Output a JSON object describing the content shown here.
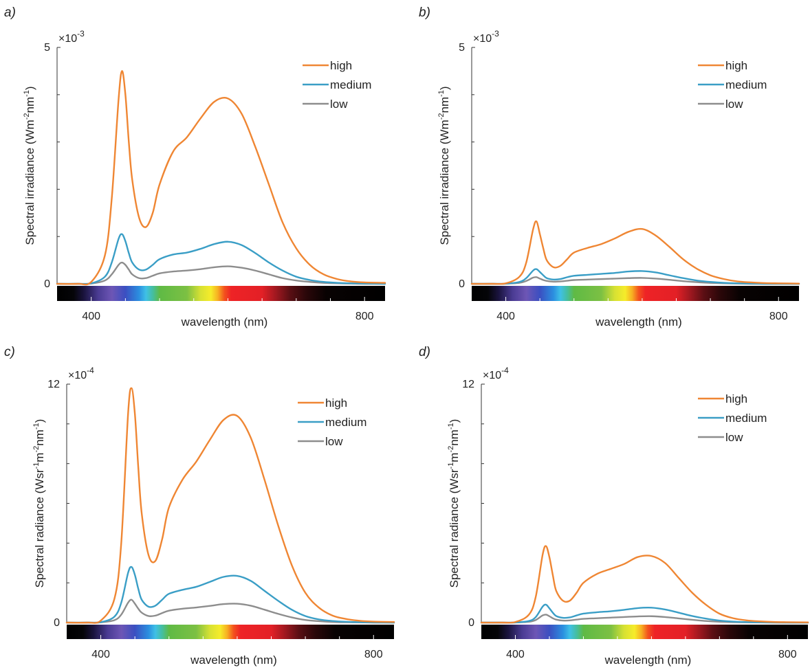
{
  "figure": {
    "panels": [
      "a)",
      "b)",
      "c)",
      "d)"
    ]
  },
  "colors": {
    "high": "#ef8633",
    "medium": "#3a9ec6",
    "low": "#8d8d8d",
    "axis": "#333333"
  },
  "chart_data": [
    {
      "type": "line",
      "panel": "a)",
      "xlabel": "wavelength (nm)",
      "ylabel": "Spectral irradiance (Wm-2nm-1)",
      "ylabel_parts": [
        "Spectral irradiance (Wm",
        "-2",
        "nm",
        "-1",
        ")"
      ],
      "exponent_base": "×10",
      "exponent_power": "-3",
      "xlim": [
        350,
        830
      ],
      "ylim": [
        0,
        5
      ],
      "xticks": [
        400,
        800
      ],
      "yticks": [
        0,
        5
      ],
      "legend": [
        "high",
        "medium",
        "low"
      ],
      "x": [
        350,
        380,
        400,
        420,
        430,
        440,
        445,
        450,
        455,
        460,
        470,
        480,
        490,
        500,
        520,
        540,
        560,
        580,
        600,
        620,
        640,
        660,
        680,
        700,
        720,
        740,
        760,
        780,
        800,
        830
      ],
      "series": [
        {
          "name": "high",
          "values": [
            0,
            0,
            0.04,
            0.6,
            1.8,
            3.9,
            4.5,
            4.0,
            3.0,
            2.2,
            1.4,
            1.2,
            1.5,
            2.1,
            2.8,
            3.1,
            3.5,
            3.85,
            3.92,
            3.6,
            2.9,
            2.1,
            1.3,
            0.75,
            0.4,
            0.2,
            0.1,
            0.05,
            0.03,
            0.02
          ]
        },
        {
          "name": "medium",
          "values": [
            0,
            0,
            0.01,
            0.15,
            0.45,
            0.95,
            1.05,
            0.9,
            0.65,
            0.45,
            0.3,
            0.3,
            0.4,
            0.52,
            0.62,
            0.66,
            0.74,
            0.84,
            0.89,
            0.82,
            0.65,
            0.45,
            0.28,
            0.15,
            0.08,
            0.04,
            0.02,
            0.01,
            0.005,
            0
          ]
        },
        {
          "name": "low",
          "values": [
            0,
            0,
            0.005,
            0.07,
            0.2,
            0.4,
            0.45,
            0.4,
            0.3,
            0.2,
            0.12,
            0.12,
            0.17,
            0.22,
            0.26,
            0.28,
            0.31,
            0.35,
            0.37,
            0.34,
            0.28,
            0.2,
            0.12,
            0.07,
            0.04,
            0.02,
            0.01,
            0.005,
            0,
            0
          ]
        }
      ]
    },
    {
      "type": "line",
      "panel": "b)",
      "xlabel": "wavelength (nm)",
      "ylabel": "Spectral irradiance (Wm-2nm-1)",
      "ylabel_parts": [
        "Spectral irradiance (Wm",
        "-2",
        "nm",
        "-1",
        ")"
      ],
      "exponent_base": "×10",
      "exponent_power": "-3",
      "xlim": [
        350,
        830
      ],
      "ylim": [
        0,
        5
      ],
      "xticks": [
        400,
        800
      ],
      "yticks": [
        0,
        5
      ],
      "legend": [
        "high",
        "medium",
        "low"
      ],
      "x": [
        350,
        380,
        400,
        420,
        430,
        440,
        445,
        450,
        455,
        460,
        470,
        480,
        490,
        500,
        520,
        540,
        560,
        580,
        600,
        620,
        640,
        660,
        680,
        700,
        720,
        740,
        760,
        780,
        800,
        830
      ],
      "series": [
        {
          "name": "high",
          "values": [
            0,
            0,
            0.01,
            0.15,
            0.45,
            1.15,
            1.32,
            1.05,
            0.75,
            0.5,
            0.35,
            0.38,
            0.52,
            0.66,
            0.76,
            0.84,
            0.96,
            1.1,
            1.16,
            1.02,
            0.78,
            0.52,
            0.32,
            0.18,
            0.1,
            0.05,
            0.03,
            0.015,
            0.01,
            0.005
          ]
        },
        {
          "name": "medium",
          "values": [
            0,
            0,
            0.003,
            0.04,
            0.12,
            0.28,
            0.31,
            0.25,
            0.18,
            0.12,
            0.09,
            0.1,
            0.14,
            0.17,
            0.19,
            0.21,
            0.23,
            0.26,
            0.27,
            0.24,
            0.18,
            0.12,
            0.07,
            0.04,
            0.02,
            0.01,
            0.005,
            0,
            0,
            0
          ]
        },
        {
          "name": "low",
          "values": [
            0,
            0,
            0.001,
            0.02,
            0.06,
            0.13,
            0.14,
            0.11,
            0.08,
            0.06,
            0.045,
            0.05,
            0.065,
            0.08,
            0.09,
            0.1,
            0.11,
            0.12,
            0.125,
            0.11,
            0.085,
            0.055,
            0.035,
            0.02,
            0.01,
            0.005,
            0,
            0,
            0,
            0
          ]
        }
      ]
    },
    {
      "type": "line",
      "panel": "c)",
      "xlabel": "wavelength (nm)",
      "ylabel": "Spectral radiance (Wsr-1m-2nm-1)",
      "ylabel_parts": [
        "Spectral radiance (Wsr",
        "-1",
        "m",
        "-2",
        "nm",
        "-1",
        ")"
      ],
      "exponent_base": "×10",
      "exponent_power": "-4",
      "xlim": [
        350,
        830
      ],
      "ylim": [
        0,
        12
      ],
      "xticks": [
        400,
        800
      ],
      "yticks": [
        0,
        12
      ],
      "legend": [
        "high",
        "medium",
        "low"
      ],
      "x": [
        350,
        380,
        400,
        420,
        430,
        440,
        445,
        450,
        455,
        460,
        470,
        480,
        490,
        500,
        520,
        540,
        560,
        580,
        600,
        620,
        640,
        660,
        680,
        700,
        720,
        740,
        760,
        780,
        800,
        830
      ],
      "series": [
        {
          "name": "high",
          "values": [
            0,
            0,
            0.1,
            1.2,
            4.0,
            10.5,
            11.8,
            10.5,
            7.8,
            5.5,
            3.4,
            3.1,
            4.2,
            5.8,
            7.2,
            8.1,
            9.2,
            10.2,
            10.4,
            9.3,
            7.2,
            4.9,
            2.9,
            1.5,
            0.75,
            0.35,
            0.18,
            0.09,
            0.05,
            0.03
          ]
        },
        {
          "name": "medium",
          "values": [
            0,
            0,
            0.02,
            0.3,
            1.0,
            2.5,
            2.8,
            2.4,
            1.7,
            1.15,
            0.8,
            0.85,
            1.15,
            1.45,
            1.65,
            1.8,
            2.05,
            2.3,
            2.35,
            2.1,
            1.6,
            1.1,
            0.65,
            0.33,
            0.16,
            0.08,
            0.04,
            0.02,
            0.01,
            0
          ]
        },
        {
          "name": "low",
          "values": [
            0,
            0,
            0.01,
            0.12,
            0.4,
            1.0,
            1.15,
            0.95,
            0.7,
            0.5,
            0.33,
            0.35,
            0.48,
            0.6,
            0.7,
            0.76,
            0.84,
            0.93,
            0.95,
            0.85,
            0.65,
            0.44,
            0.26,
            0.13,
            0.07,
            0.03,
            0.015,
            0.01,
            0,
            0
          ]
        }
      ]
    },
    {
      "type": "line",
      "panel": "d)",
      "xlabel": "wavelength (nm)",
      "ylabel": "Spectral radiance (Wsr-1m-2nm-1)",
      "ylabel_parts": [
        "Spectral radiance (Wsr",
        "-1",
        "m",
        "-2",
        "nm",
        "-1",
        ")"
      ],
      "exponent_base": "×10",
      "exponent_power": "-4",
      "xlim": [
        350,
        830
      ],
      "ylim": [
        0,
        12
      ],
      "xticks": [
        400,
        800
      ],
      "yticks": [
        0,
        12
      ],
      "legend": [
        "high",
        "medium",
        "low"
      ],
      "x": [
        350,
        380,
        400,
        420,
        430,
        440,
        445,
        450,
        455,
        460,
        470,
        480,
        490,
        500,
        520,
        540,
        560,
        580,
        600,
        620,
        640,
        660,
        680,
        700,
        720,
        740,
        760,
        780,
        800,
        830
      ],
      "series": [
        {
          "name": "high",
          "values": [
            0,
            0,
            0.03,
            0.4,
            1.3,
            3.4,
            3.85,
            3.3,
            2.4,
            1.6,
            1.1,
            1.1,
            1.5,
            2.0,
            2.45,
            2.7,
            2.95,
            3.3,
            3.35,
            3.0,
            2.25,
            1.5,
            0.9,
            0.45,
            0.22,
            0.11,
            0.06,
            0.03,
            0.02,
            0.01
          ]
        },
        {
          "name": "medium",
          "values": [
            0,
            0,
            0.005,
            0.08,
            0.28,
            0.8,
            0.9,
            0.72,
            0.5,
            0.33,
            0.24,
            0.26,
            0.36,
            0.45,
            0.52,
            0.57,
            0.64,
            0.73,
            0.75,
            0.66,
            0.5,
            0.33,
            0.2,
            0.1,
            0.05,
            0.025,
            0.01,
            0.005,
            0,
            0
          ]
        },
        {
          "name": "low",
          "values": [
            0,
            0,
            0.003,
            0.04,
            0.13,
            0.36,
            0.4,
            0.32,
            0.22,
            0.15,
            0.1,
            0.11,
            0.15,
            0.19,
            0.22,
            0.25,
            0.28,
            0.31,
            0.32,
            0.28,
            0.21,
            0.14,
            0.08,
            0.04,
            0.02,
            0.01,
            0.005,
            0,
            0,
            0
          ]
        }
      ]
    }
  ]
}
